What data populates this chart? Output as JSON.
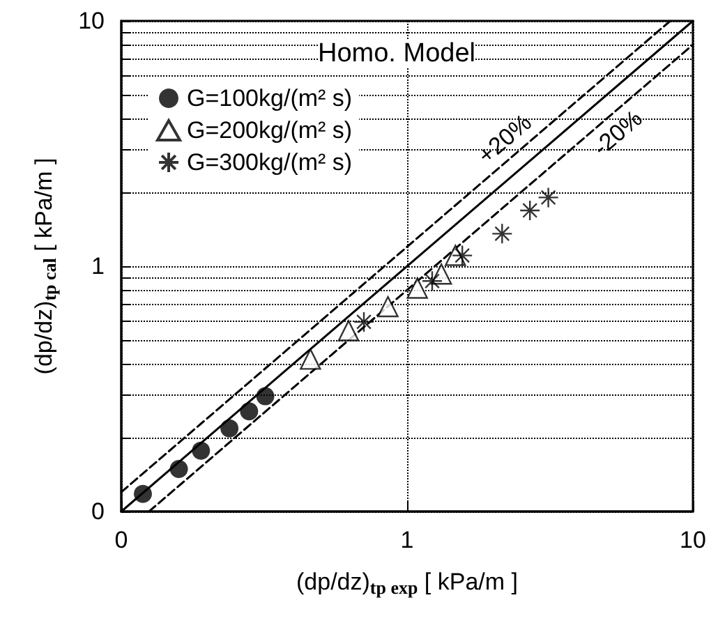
{
  "chart_data": {
    "type": "scatter",
    "xlabel": "(dp/dz)$_{tp exp}$ [ kPa/m ]",
    "ylabel": "(dp/dz)$_{tp cal}$ [ kPa/m ]",
    "legend_title": "Homo. Model",
    "log": "xy",
    "xlim": [
      0.1,
      10
    ],
    "ylim": [
      0.1,
      10
    ],
    "xticks": [
      {
        "value": 0.1,
        "label": "0"
      },
      1,
      10
    ],
    "yticks": [
      {
        "value": 0.1,
        "label": "0"
      },
      {
        "value": 0.2,
        "label": null
      },
      {
        "value": 0.3,
        "label": null
      },
      {
        "value": 0.4,
        "label": null
      },
      {
        "value": 0.5,
        "label": null
      },
      {
        "value": 0.6,
        "label": null
      },
      {
        "value": 0.7,
        "label": null
      },
      {
        "value": 0.8,
        "label": null
      },
      {
        "value": 0.9,
        "label": null
      },
      1,
      {
        "value": 2,
        "label": null
      },
      {
        "value": 3,
        "label": null
      },
      {
        "value": 4,
        "label": null
      },
      {
        "value": 5,
        "label": null
      },
      {
        "value": 6,
        "label": null
      },
      {
        "value": 7,
        "label": null
      },
      {
        "value": 8,
        "label": null
      },
      {
        "value": 9,
        "label": null
      },
      10
    ],
    "grid": true,
    "legend": "top left",
    "series": [
      {
        "name": "G=100kg/(m² s)",
        "color": "#000000",
        "marker": "circle",
        "x": [
          0.119,
          0.159,
          0.19,
          0.239,
          0.28,
          0.319
        ],
        "values": [
          0.118,
          0.149,
          0.177,
          0.218,
          0.256,
          0.295
        ]
      },
      {
        "name": "G=200kg/(m² s)",
        "color": "#000000",
        "marker": "triangle",
        "x": [
          0.459,
          0.624,
          0.857,
          1.086,
          1.318,
          1.476
        ],
        "values": [
          0.418,
          0.546,
          0.684,
          0.814,
          0.929,
          1.107
        ]
      },
      {
        "name": "G=300kg/(m² s)",
        "color": "#000000",
        "marker": "cross",
        "x": [
          0.706,
          1.224,
          1.56,
          2.15,
          2.69,
          3.12
        ],
        "values": [
          0.593,
          0.87,
          1.106,
          1.357,
          1.688,
          1.906
        ]
      },
      {
        "type": "line",
        "color": "#000000",
        "line_style": "solid",
        "marker": "none",
        "x": [
          0.1,
          10
        ],
        "values": [
          0.1,
          10
        ]
      },
      {
        "type": "line",
        "name": "+20%",
        "color": "#000000",
        "line_style": "dashed",
        "marker": "none",
        "x": [
          0.1,
          8.333
        ],
        "values": [
          0.12,
          10
        ]
      },
      {
        "type": "line",
        "name": "-20%",
        "color": "#000000",
        "line_style": "dashed",
        "marker": "none",
        "x": [
          0.125,
          10
        ],
        "values": [
          0.1,
          8
        ]
      }
    ]
  }
}
